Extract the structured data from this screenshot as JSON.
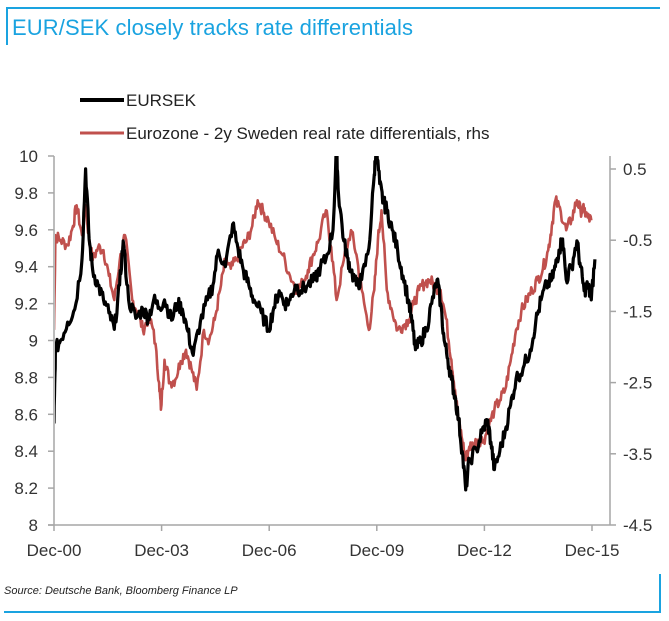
{
  "title": "EUR/SEK closely tracks rate differentials",
  "source": "Source: Deutsche Bank, Bloomberg Finance LP",
  "colors": {
    "accent": "#1aa3e0",
    "eursek": "#000000",
    "differential": "#c0504d",
    "axis": "#a6a6a6"
  },
  "chart_data": {
    "type": "line",
    "title": "EUR/SEK closely tracks rate differentials",
    "xlabel": "",
    "ylabel": "",
    "x_ticks": [
      "Dec-00",
      "Dec-03",
      "Dec-06",
      "Dec-09",
      "Dec-12",
      "Dec-15"
    ],
    "x_range": [
      2000.92,
      2016.1
    ],
    "y_left": {
      "ticks": [
        "10",
        "9.8",
        "9.6",
        "9.4",
        "9.2",
        "9",
        "8.8",
        "8.6",
        "8.4",
        "8.2",
        "8"
      ],
      "range": [
        8,
        10
      ]
    },
    "y_right": {
      "ticks": [
        "0.5",
        "-0.5",
        "-1.5",
        "-2.5",
        "-3.5",
        "-4.5"
      ],
      "range": [
        -4.5,
        0.68
      ]
    },
    "grid": false,
    "legend_position": "top-left",
    "series": [
      {
        "name": "EURSEK",
        "axis": "left",
        "color": "#000000",
        "x": [
          2000.92,
          2000.96,
          2001.1,
          2001.3,
          2001.5,
          2001.7,
          2001.8,
          2001.9,
          2002.0,
          2002.15,
          2002.3,
          2002.45,
          2002.6,
          2002.75,
          2002.85,
          2003.0,
          2003.2,
          2003.4,
          2003.55,
          2003.7,
          2003.85,
          2004.0,
          2004.2,
          2004.35,
          2004.5,
          2004.65,
          2004.8,
          2005.0,
          2005.2,
          2005.35,
          2005.5,
          2005.7,
          2005.9,
          2006.05,
          2006.2,
          2006.35,
          2006.5,
          2006.7,
          2006.9,
          2007.05,
          2007.2,
          2007.35,
          2007.5,
          2007.65,
          2007.8,
          2008.0,
          2008.2,
          2008.35,
          2008.5,
          2008.7,
          2008.8,
          2008.85,
          2009.0,
          2009.1,
          2009.2,
          2009.35,
          2009.5,
          2009.7,
          2009.85,
          2009.9,
          2010.0,
          2010.1,
          2010.2,
          2010.35,
          2010.5,
          2010.65,
          2010.8,
          2010.9,
          2011.0,
          2011.15,
          2011.3,
          2011.45,
          2011.6,
          2011.7,
          2011.8,
          2011.9,
          2012.0,
          2012.1,
          2012.2,
          2012.3,
          2012.4,
          2012.5,
          2012.7,
          2012.85,
          2013.0,
          2013.1,
          2013.2,
          2013.35,
          2013.5,
          2013.65,
          2013.8,
          2014.0,
          2014.2,
          2014.35,
          2014.5,
          2014.65,
          2014.8,
          2014.9,
          2015.0,
          2015.1,
          2015.2,
          2015.35,
          2015.5,
          2015.6,
          2015.7,
          2015.8,
          2015.9,
          2016.0
        ],
        "values": [
          8.55,
          8.95,
          9.0,
          9.1,
          9.17,
          9.44,
          9.93,
          9.55,
          9.38,
          9.3,
          9.22,
          9.15,
          9.06,
          9.3,
          9.54,
          9.22,
          9.12,
          9.17,
          9.12,
          9.22,
          9.18,
          9.22,
          9.11,
          9.2,
          9.17,
          9.05,
          8.92,
          9.1,
          9.22,
          9.3,
          9.49,
          9.4,
          9.63,
          9.5,
          9.38,
          9.3,
          9.22,
          9.15,
          9.06,
          9.18,
          9.27,
          9.2,
          9.22,
          9.3,
          9.27,
          9.3,
          9.33,
          9.4,
          9.44,
          9.6,
          10.05,
          9.8,
          9.54,
          9.45,
          9.38,
          9.3,
          9.33,
          9.5,
          9.9,
          10.05,
          9.85,
          9.75,
          9.71,
          9.6,
          9.49,
          9.35,
          9.22,
          9.1,
          8.95,
          9.0,
          9.06,
          9.2,
          9.33,
          9.2,
          9.0,
          8.9,
          8.79,
          8.7,
          8.57,
          8.4,
          8.19,
          8.35,
          8.41,
          8.5,
          8.57,
          8.45,
          8.3,
          8.4,
          8.51,
          8.65,
          8.79,
          8.85,
          8.95,
          9.1,
          9.22,
          9.3,
          9.33,
          9.4,
          9.49,
          9.55,
          9.33,
          9.4,
          9.54,
          9.4,
          9.27,
          9.3,
          9.22,
          9.44
        ]
      },
      {
        "name": "Eurozone - 2y Sweden real rate differentials, rhs",
        "axis": "right",
        "color": "#c0504d",
        "x": [
          2000.92,
          2000.96,
          2001.1,
          2001.3,
          2001.45,
          2001.55,
          2001.7,
          2001.8,
          2001.9,
          2002.0,
          2002.15,
          2002.3,
          2002.45,
          2002.6,
          2002.75,
          2002.9,
          2003.1,
          2003.25,
          2003.4,
          2003.55,
          2003.7,
          2003.85,
          2003.9,
          2004.0,
          2004.15,
          2004.3,
          2004.45,
          2004.6,
          2004.75,
          2004.9,
          2005.1,
          2005.25,
          2005.4,
          2005.55,
          2005.7,
          2005.85,
          2006.0,
          2006.15,
          2006.3,
          2006.45,
          2006.6,
          2006.75,
          2006.9,
          2007.1,
          2007.3,
          2007.5,
          2007.7,
          2007.85,
          2008.0,
          2008.15,
          2008.3,
          2008.5,
          2008.65,
          2008.8,
          2009.0,
          2009.2,
          2009.35,
          2009.5,
          2009.7,
          2009.85,
          2009.95,
          2010.05,
          2010.2,
          2010.35,
          2010.5,
          2010.65,
          2010.8,
          2010.95,
          2011.1,
          2011.25,
          2011.4,
          2011.55,
          2011.7,
          2011.85,
          2012.0,
          2012.1,
          2012.2,
          2012.3,
          2012.4,
          2012.5,
          2012.6,
          2012.75,
          2012.9,
          2013.05,
          2013.2,
          2013.35,
          2013.5,
          2013.65,
          2013.8,
          2013.95,
          2014.1,
          2014.25,
          2014.4,
          2014.55,
          2014.7,
          2014.8,
          2014.9,
          2015.05,
          2015.2,
          2015.35,
          2015.5,
          2015.6,
          2015.7,
          2015.8,
          2015.9
        ],
        "values": [
          -1.76,
          -0.43,
          -0.5,
          -0.57,
          -0.3,
          -0.01,
          -0.43,
          -0.01,
          -0.5,
          -0.78,
          -0.6,
          -0.64,
          -1.0,
          -1.34,
          -0.8,
          -0.43,
          -1.34,
          -1.5,
          -1.76,
          -1.6,
          -1.76,
          -2.5,
          -2.88,
          -2.18,
          -2.5,
          -2.46,
          -2.2,
          -2.04,
          -2.3,
          -2.6,
          -1.76,
          -1.9,
          -1.62,
          -1.2,
          -0.78,
          -0.9,
          -0.78,
          -0.6,
          -0.5,
          -0.3,
          0.06,
          -0.1,
          -0.22,
          -0.5,
          -0.71,
          -1.0,
          -1.2,
          -1.1,
          -0.92,
          -0.7,
          -0.5,
          -0.08,
          -0.6,
          -1.34,
          -0.78,
          -0.36,
          -0.7,
          -1.2,
          -1.76,
          -1.2,
          -0.5,
          -0.08,
          -1.2,
          -1.5,
          -1.76,
          -1.7,
          -1.62,
          -1.4,
          -1.2,
          -1.1,
          -1.06,
          -1.15,
          -1.2,
          -1.6,
          -2.18,
          -2.6,
          -3.03,
          -3.3,
          -3.59,
          -3.4,
          -3.38,
          -3.3,
          -3.31,
          -3.1,
          -2.88,
          -2.75,
          -2.6,
          -2.2,
          -1.76,
          -1.5,
          -1.34,
          -1.2,
          -1.06,
          -0.9,
          -0.64,
          -0.3,
          0.06,
          -0.1,
          -0.36,
          -0.2,
          0.06,
          -0.08,
          -0.08,
          -0.18,
          -0.22
        ]
      }
    ]
  }
}
